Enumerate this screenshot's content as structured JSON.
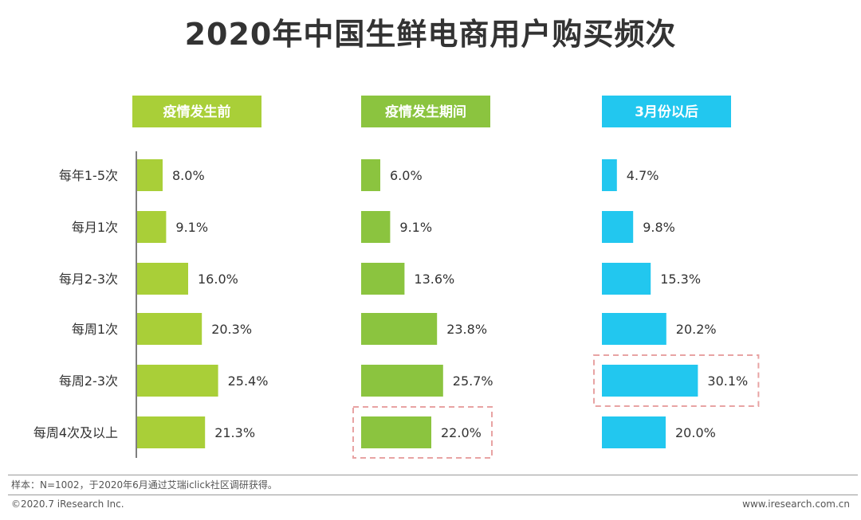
{
  "chart_data": {
    "type": "bar",
    "orientation": "horizontal",
    "title": "2020年中国生鲜电商用户购买频次",
    "categories": [
      "每年1-5次",
      "每月1次",
      "每月2-3次",
      "每周1次",
      "每周2-3次",
      "每周4次及以上"
    ],
    "series": [
      {
        "name": "疫情发生前",
        "color": "#a9cf38",
        "values": [
          8.0,
          9.1,
          16.0,
          20.3,
          25.4,
          21.3
        ],
        "labels": [
          "8.0%",
          "9.1%",
          "16.0%",
          "20.3%",
          "25.4%",
          "21.3%"
        ],
        "highlight_index": null
      },
      {
        "name": "疫情发生期间",
        "color": "#8bc43f",
        "values": [
          6.0,
          9.1,
          13.6,
          23.8,
          25.7,
          22.0
        ],
        "labels": [
          "6.0%",
          "9.1%",
          "13.6%",
          "23.8%",
          "25.7%",
          "22.0%"
        ],
        "highlight_index": 5
      },
      {
        "name": "3月份以后",
        "color": "#22c7ef",
        "values": [
          4.7,
          9.8,
          15.3,
          20.2,
          30.1,
          20.0
        ],
        "labels": [
          "4.7%",
          "9.8%",
          "15.3%",
          "20.2%",
          "30.1%",
          "20.0%"
        ],
        "highlight_index": 4
      }
    ],
    "unit": "%"
  },
  "footer": {
    "note": "样本：N=1002，于2020年6月通过艾瑞iclick社区调研获得。",
    "copyright": "©2020.7 iResearch Inc.",
    "website": "www.iresearch.com.cn"
  },
  "colors": {
    "highlight_border": "#e8a3a3",
    "axis": "#555555"
  }
}
